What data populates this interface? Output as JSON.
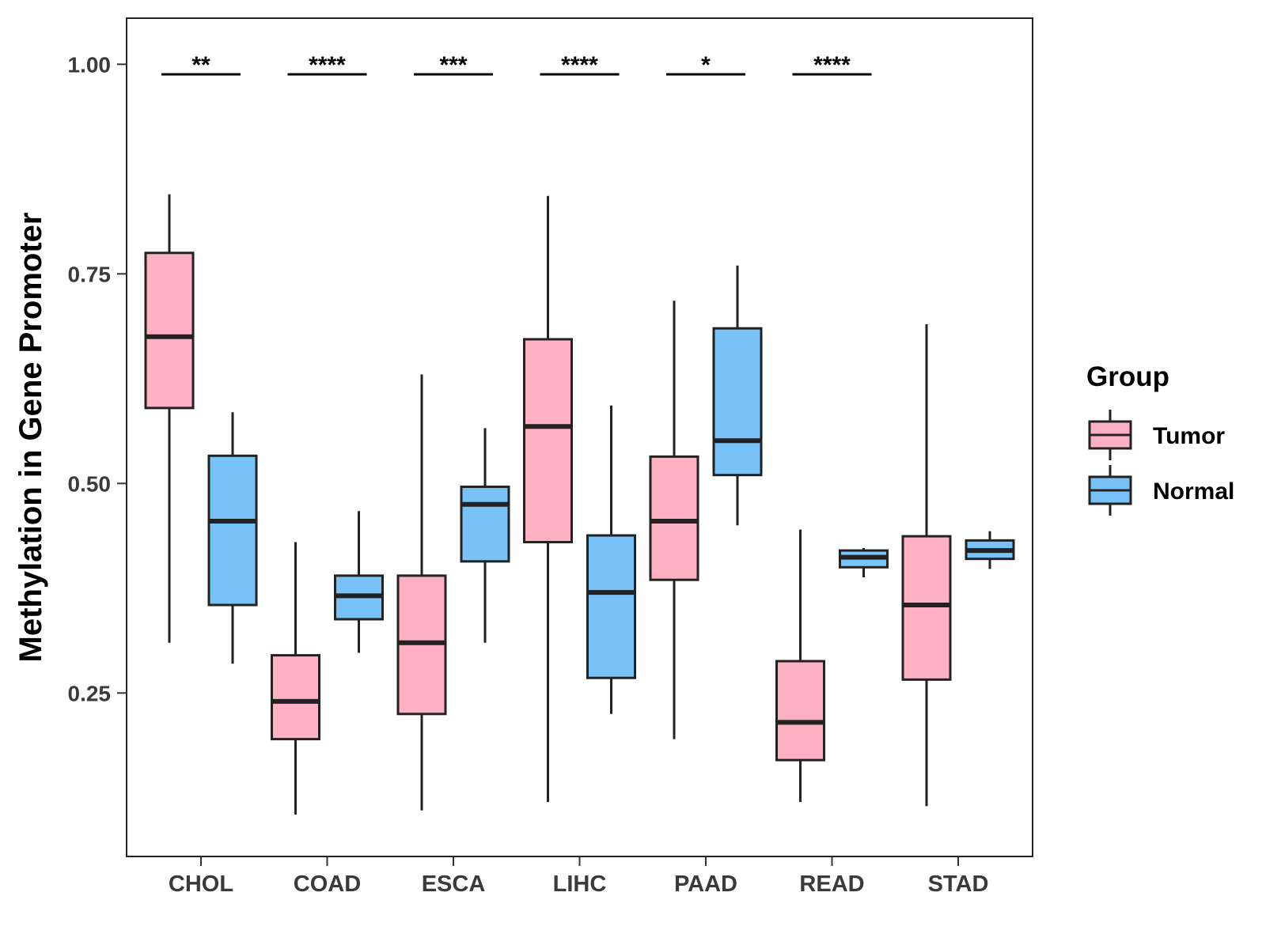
{
  "chart_data": {
    "type": "box",
    "title": "",
    "xlabel": "",
    "ylabel": "Methylation in Gene Promoter",
    "ylim": [
      0.055,
      1.055
    ],
    "yticks": [
      0.25,
      0.5,
      0.75,
      1.0
    ],
    "ytick_labels": [
      "0.25",
      "0.50",
      "0.75",
      "1.00"
    ],
    "categories": [
      "CHOL",
      "COAD",
      "ESCA",
      "LIHC",
      "PAAD",
      "READ",
      "STAD"
    ],
    "legend": {
      "title": "Group",
      "placement": "right",
      "entries": [
        {
          "name": "Tumor",
          "color": "#FFB1C3"
        },
        {
          "name": "Normal",
          "color": "#78C2F7"
        }
      ]
    },
    "series": [
      {
        "name": "Tumor",
        "color": "#FFB1C3",
        "boxes": [
          {
            "min": 0.31,
            "q1": 0.59,
            "median": 0.675,
            "q3": 0.775,
            "max": 0.845
          },
          {
            "min": 0.105,
            "q1": 0.195,
            "median": 0.24,
            "q3": 0.295,
            "max": 0.43
          },
          {
            "min": 0.11,
            "q1": 0.225,
            "median": 0.31,
            "q3": 0.39,
            "max": 0.63
          },
          {
            "min": 0.12,
            "q1": 0.43,
            "median": 0.568,
            "q3": 0.672,
            "max": 0.843
          },
          {
            "min": 0.195,
            "q1": 0.385,
            "median": 0.455,
            "q3": 0.532,
            "max": 0.718
          },
          {
            "min": 0.12,
            "q1": 0.17,
            "median": 0.215,
            "q3": 0.288,
            "max": 0.445
          },
          {
            "min": 0.115,
            "q1": 0.266,
            "median": 0.355,
            "q3": 0.437,
            "max": 0.69
          }
        ]
      },
      {
        "name": "Normal",
        "color": "#78C2F7",
        "boxes": [
          {
            "min": 0.285,
            "q1": 0.355,
            "median": 0.455,
            "q3": 0.533,
            "max": 0.585
          },
          {
            "min": 0.298,
            "q1": 0.338,
            "median": 0.366,
            "q3": 0.39,
            "max": 0.467
          },
          {
            "min": 0.31,
            "q1": 0.407,
            "median": 0.475,
            "q3": 0.496,
            "max": 0.566
          },
          {
            "min": 0.225,
            "q1": 0.268,
            "median": 0.37,
            "q3": 0.438,
            "max": 0.593
          },
          {
            "min": 0.45,
            "q1": 0.51,
            "median": 0.551,
            "q3": 0.685,
            "max": 0.76
          },
          {
            "min": 0.388,
            "q1": 0.4,
            "median": 0.412,
            "q3": 0.42,
            "max": 0.423
          },
          {
            "min": 0.398,
            "q1": 0.41,
            "median": 0.42,
            "q3": 0.432,
            "max": 0.443
          }
        ]
      }
    ],
    "significance": [
      {
        "category": "CHOL",
        "label": "**",
        "y": 0.988
      },
      {
        "category": "COAD",
        "label": "****",
        "y": 0.988
      },
      {
        "category": "ESCA",
        "label": "***",
        "y": 0.988
      },
      {
        "category": "LIHC",
        "label": "****",
        "y": 0.988
      },
      {
        "category": "PAAD",
        "label": "*",
        "y": 0.988
      },
      {
        "category": "READ",
        "label": "****",
        "y": 0.988
      }
    ]
  }
}
